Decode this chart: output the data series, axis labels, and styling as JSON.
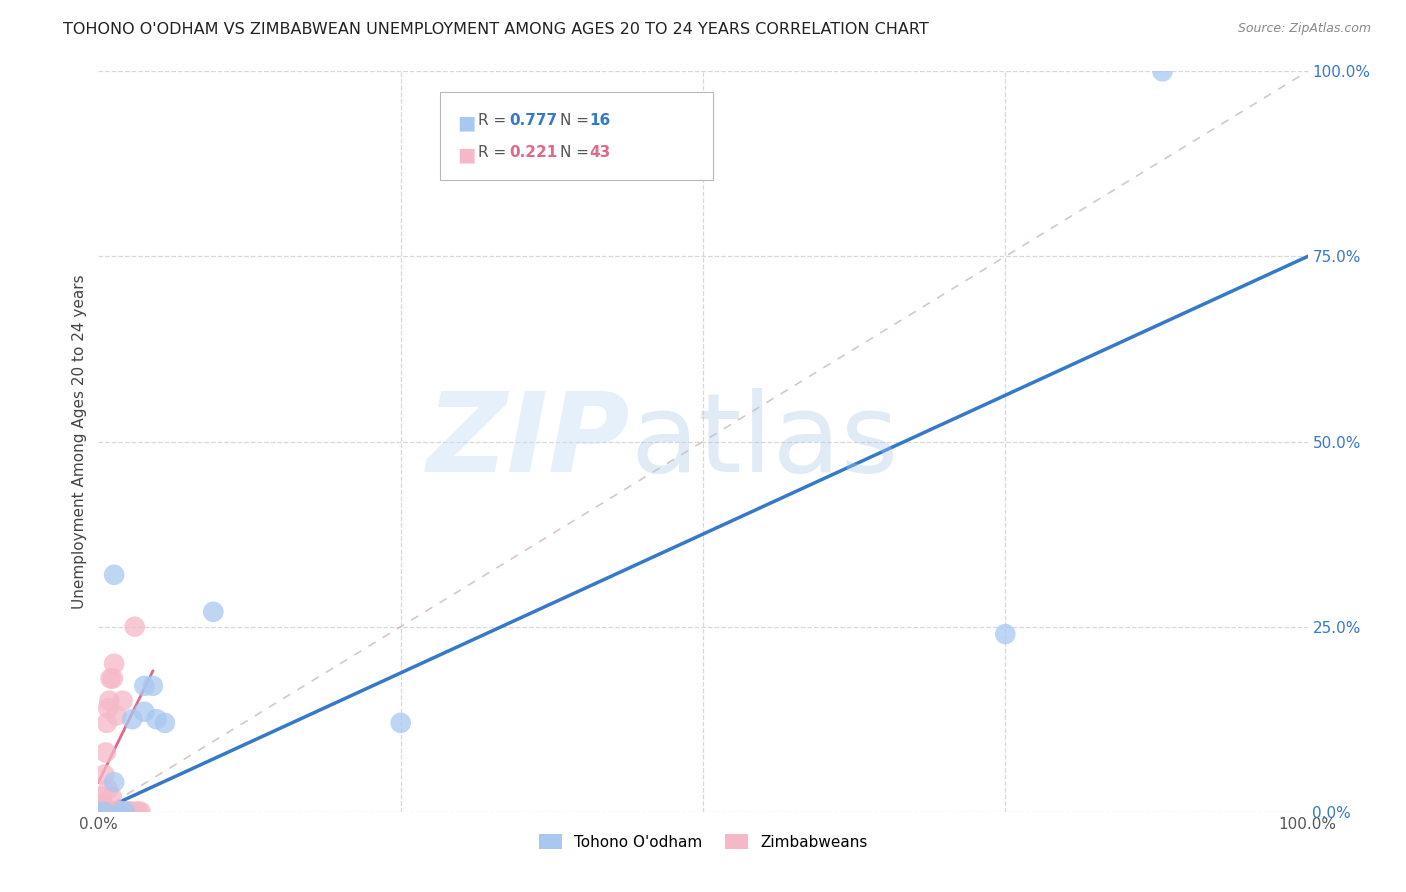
{
  "title": "TOHONO O'ODHAM VS ZIMBABWEAN UNEMPLOYMENT AMONG AGES 20 TO 24 YEARS CORRELATION CHART",
  "source": "Source: ZipAtlas.com",
  "ylabel": "Unemployment Among Ages 20 to 24 years",
  "xlim": [
    0,
    1.0
  ],
  "ylim": [
    0,
    1.0
  ],
  "background_color": "#ffffff",
  "grid_color": "#d8d8d8",
  "legend_R1": "0.777",
  "legend_N1": "16",
  "legend_R2": "0.221",
  "legend_N2": "43",
  "blue_color": "#a8c8f0",
  "pink_color": "#f5b8c8",
  "blue_line_color": "#3579c8",
  "pink_line_color": "#e06888",
  "ref_line_color": "#d0b8b8",
  "tohono_x": [
    0.0,
    0.005,
    0.013,
    0.018,
    0.028,
    0.038,
    0.045,
    0.048,
    0.055,
    0.095,
    0.25,
    0.75,
    0.88,
    0.013,
    0.038,
    0.022
  ],
  "tohono_y": [
    0.0,
    0.0,
    0.04,
    0.0,
    0.125,
    0.135,
    0.17,
    0.125,
    0.12,
    0.27,
    0.12,
    0.24,
    1.0,
    0.32,
    0.17,
    0.0
  ],
  "zimbabwean_x": [
    0.0,
    0.001,
    0.002,
    0.002,
    0.003,
    0.003,
    0.004,
    0.004,
    0.005,
    0.005,
    0.006,
    0.006,
    0.007,
    0.007,
    0.008,
    0.008,
    0.009,
    0.009,
    0.01,
    0.01,
    0.011,
    0.012,
    0.012,
    0.013,
    0.013,
    0.014,
    0.015,
    0.016,
    0.017,
    0.018,
    0.019,
    0.02,
    0.021,
    0.022,
    0.023,
    0.025,
    0.026,
    0.027,
    0.028,
    0.03,
    0.031,
    0.033,
    0.035
  ],
  "zimbabwean_y": [
    0.0,
    0.0,
    0.0,
    0.01,
    0.0,
    0.02,
    0.0,
    0.01,
    0.05,
    0.0,
    0.08,
    0.0,
    0.12,
    0.0,
    0.14,
    0.03,
    0.15,
    0.0,
    0.18,
    0.0,
    0.02,
    0.18,
    0.0,
    0.2,
    0.0,
    0.0,
    0.13,
    0.0,
    0.0,
    0.0,
    0.0,
    0.15,
    0.0,
    0.0,
    0.0,
    0.0,
    0.0,
    0.0,
    0.0,
    0.25,
    0.0,
    0.0,
    0.0
  ],
  "blue_trend": [
    0.0,
    0.0,
    1.0,
    0.75
  ],
  "pink_trend": [
    0.0,
    0.04,
    0.045,
    0.19
  ],
  "ref_line": [
    0.0,
    0.0,
    1.0,
    1.0
  ],
  "dot_size": 220,
  "title_fontsize": 11.5,
  "axis_label_fontsize": 11,
  "tick_fontsize": 11
}
